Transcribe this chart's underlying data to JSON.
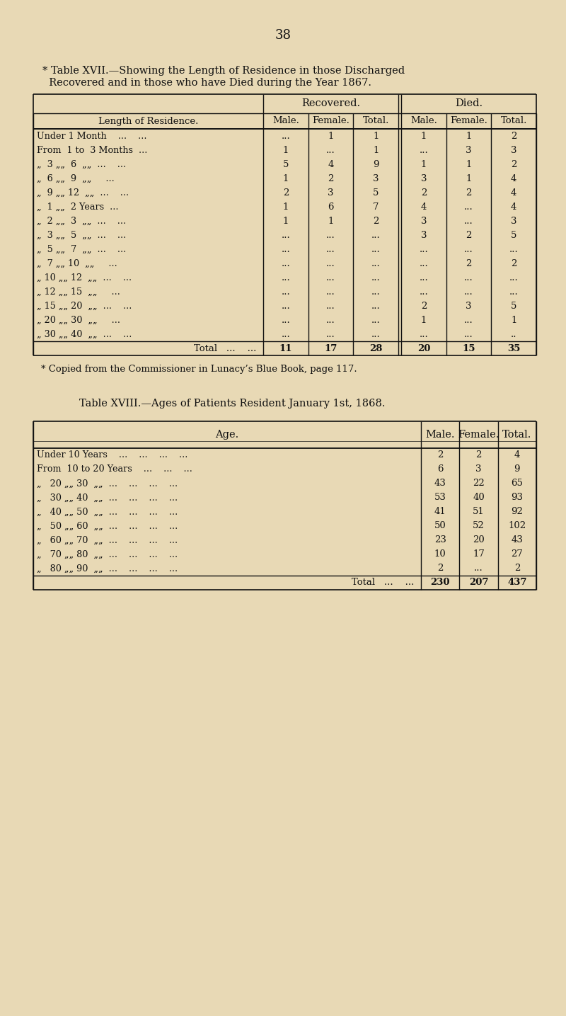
{
  "bg_color": "#e8d9b5",
  "page_number": "38",
  "table1_title_line1": "* Table XVII.—Showing the Length of Residence in those Discharged",
  "table1_title_line2": "  Recovered and in those who have Died during the Year 1867.",
  "footnote": "* Copied from the Commissioner in Lunacy’s Blue Book, page 117.",
  "table2_title": "Table XVIII.—Ages of Patients Resident January 1st, 1868.",
  "table1_rows": [
    [
      "Under 1 Month    ...    ...",
      "...",
      "1",
      "1",
      "1",
      "1",
      "2"
    ],
    [
      "From  1 to  3 Months  ...",
      "1",
      "...",
      "1",
      "...",
      "3",
      "3"
    ],
    [
      "„  3 „„  6  „„  ...    ...",
      "5",
      "4",
      "9",
      "1",
      "1",
      "2"
    ],
    [
      "„  6 „„  9  „„     ...",
      "1",
      "2",
      "3",
      "3",
      "1",
      "4"
    ],
    [
      "„  9 „„ 12  „„  ...    ...",
      "2",
      "3",
      "5",
      "2",
      "2",
      "4"
    ],
    [
      "„  1 „„  2 Years  ...",
      "1",
      "6",
      "7",
      "4",
      "...",
      "4"
    ],
    [
      "„  2 „„  3  „„  ...    ...",
      "1",
      "1",
      "2",
      "3",
      "...",
      "3"
    ],
    [
      "„  3 „„  5  „„  ...    ...",
      "...",
      "...",
      "...",
      "3",
      "2",
      "5"
    ],
    [
      "„  5 „„  7  „„  ...    ...",
      "...",
      "...",
      "...",
      "...",
      "...",
      "..."
    ],
    [
      "„  7 „„ 10  „„     ...",
      "...",
      "...",
      "...",
      "...",
      "2",
      "2"
    ],
    [
      "„ 10 „„ 12  „„  ...    ...",
      "...",
      "...",
      "...",
      "...",
      "...",
      "..."
    ],
    [
      "„ 12 „„ 15  „„     ...",
      "...",
      "...",
      "...",
      "...",
      "...",
      "..."
    ],
    [
      "„ 15 „„ 20  „„  ...    ...",
      "...",
      "...",
      "...",
      "2",
      "3",
      "5"
    ],
    [
      "„ 20 „„ 30  „„     ...",
      "...",
      "...",
      "...",
      "1",
      "...",
      "1"
    ],
    [
      "„ 30 „„ 40  „„  ...    ...",
      "...",
      "...",
      "...",
      "...",
      "...",
      ".."
    ],
    [
      "Total   ...    ...",
      "11",
      "17",
      "28",
      "20",
      "15",
      "35"
    ]
  ],
  "table2_rows": [
    [
      "Under 10 Years    ...    ...    ...    ...",
      "2",
      "2",
      "4"
    ],
    [
      "From  10 to 20 Years    ...    ...    ...",
      "6",
      "3",
      "9"
    ],
    [
      "„   20 „„ 30  „„  ...    ...    ...    ...",
      "43",
      "22",
      "65"
    ],
    [
      "„   30 „„ 40  „„  ...    ...    ...    ...",
      "53",
      "40",
      "93"
    ],
    [
      "„   40 „„ 50  „„  ...    ...    ...    ...",
      "41",
      "51",
      "92"
    ],
    [
      "„   50 „„ 60  „„  ...    ...    ...    ...",
      "50",
      "52",
      "102"
    ],
    [
      "„   60 „„ 70  „„  ...    ...    ...    ...",
      "23",
      "20",
      "43"
    ],
    [
      "„   70 „„ 80  „„  ...    ...    ...    ...",
      "10",
      "17",
      "27"
    ],
    [
      "„   80 „„ 90  „„  ...    ...    ...    ...",
      "2",
      "...",
      "2"
    ],
    [
      "Total   ...    ...",
      "230",
      "207",
      "437"
    ]
  ]
}
